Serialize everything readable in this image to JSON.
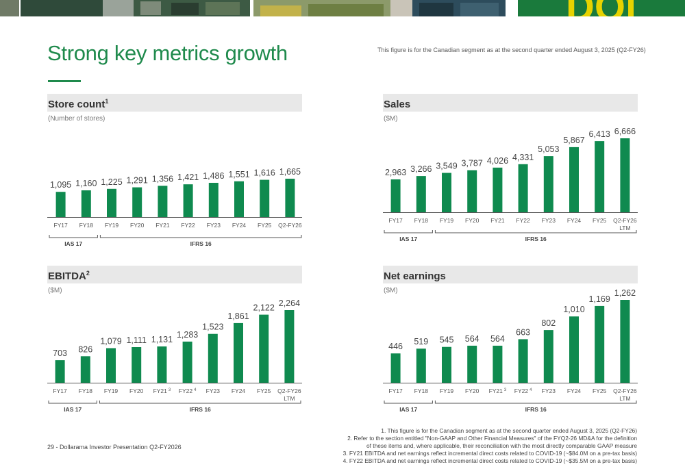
{
  "page": {
    "title": "Strong key metrics growth",
    "top_note": "This figure is for the Canadian segment as at the second quarter ended August 3, 2025 (Q2-FY26)",
    "footer": "29 - Dollarama Investor Presentation Q2-FY2026",
    "footnotes": [
      "1. This figure is for the Canadian segment as at the second quarter ended August 3, 2025 (Q2-FY26)",
      "2. Refer to the section entitled \"Non-GAAP and Other Financial Measures\" of the FYQ2-26 MD&A for the definition",
      "of these items and, where applicable, their reconciliation with the most directly comparable GAAP measure",
      "3. FY21 EBITDA and net earnings reflect incremental direct costs related to COVID-19 (~$84.0M on a pre-tax basis)",
      "4. FY22 EBITDA and net earnings reflect incremental direct costs related to COVID-19 (~$35.5M on a pre-tax basis)"
    ],
    "bar_color": "#0f8a4f",
    "accent_color": "#1f8a4c",
    "banner_logo_text": "DOl"
  },
  "chart_data": [
    {
      "type": "bar",
      "title": "Store count",
      "title_sup": "1",
      "unit": "(Number of stores)",
      "categories": [
        "FY17",
        "FY18",
        "FY19",
        "FY20",
        "FY21",
        "FY22",
        "FY23",
        "FY24",
        "FY25",
        "Q2-FY26"
      ],
      "category_sups": [
        "",
        "",
        "",
        "",
        "",
        "",
        "",
        "",
        "",
        ""
      ],
      "category_sublabels": [
        "",
        "",
        "",
        "",
        "",
        "",
        "",
        "",
        "",
        ""
      ],
      "values": [
        1095,
        1160,
        1225,
        1291,
        1356,
        1421,
        1486,
        1551,
        1616,
        1665
      ],
      "value_labels": [
        "1,095",
        "1,160",
        "1,225",
        "1,291",
        "1,356",
        "1,421",
        "1,486",
        "1,551",
        "1,616",
        "1,665"
      ],
      "groups": [
        {
          "label": "IAS 17",
          "from": 0,
          "to": 1
        },
        {
          "label": "IFRS 16",
          "from": 2,
          "to": 9
        }
      ]
    },
    {
      "type": "bar",
      "title": "Sales",
      "title_sup": "",
      "unit": "($M)",
      "categories": [
        "FY17",
        "FY18",
        "FY19",
        "FY20",
        "FY21",
        "FY22",
        "FY23",
        "FY24",
        "FY25",
        "Q2-FY26"
      ],
      "category_sups": [
        "",
        "",
        "",
        "",
        "",
        "",
        "",
        "",
        "",
        ""
      ],
      "category_sublabels": [
        "",
        "",
        "",
        "",
        "",
        "",
        "",
        "",
        "",
        "LTM"
      ],
      "values": [
        2963,
        3266,
        3549,
        3787,
        4026,
        4331,
        5053,
        5867,
        6413,
        6666
      ],
      "value_labels": [
        "2,963",
        "3,266",
        "3,549",
        "3,787",
        "4,026",
        "4,331",
        "5,053",
        "5,867",
        "6,413",
        "6,666"
      ],
      "groups": [
        {
          "label": "IAS 17",
          "from": 0,
          "to": 1
        },
        {
          "label": "IFRS 16",
          "from": 2,
          "to": 9
        }
      ]
    },
    {
      "type": "bar",
      "title": "EBITDA",
      "title_sup": "2",
      "unit": "($M)",
      "categories": [
        "FY17",
        "FY18",
        "FY19",
        "FY20",
        "FY21",
        "FY22",
        "FY23",
        "FY24",
        "FY25",
        "Q2-FY26"
      ],
      "category_sups": [
        "",
        "",
        "",
        "",
        "3",
        "4",
        "",
        "",
        "",
        ""
      ],
      "category_sublabels": [
        "",
        "",
        "",
        "",
        "",
        "",
        "",
        "",
        "",
        "LTM"
      ],
      "values": [
        703,
        826,
        1079,
        1111,
        1131,
        1283,
        1523,
        1861,
        2122,
        2264
      ],
      "value_labels": [
        "703",
        "826",
        "1,079",
        "1,111",
        "1,131",
        "1,283",
        "1,523",
        "1,861",
        "2,122",
        "2,264"
      ],
      "groups": [
        {
          "label": "IAS 17",
          "from": 0,
          "to": 1
        },
        {
          "label": "IFRS 16",
          "from": 2,
          "to": 9
        }
      ]
    },
    {
      "type": "bar",
      "title": "Net earnings",
      "title_sup": "",
      "unit": "($M)",
      "categories": [
        "FY17",
        "FY18",
        "FY19",
        "FY20",
        "FY21",
        "FY22",
        "FY23",
        "FY24",
        "FY25",
        "Q2-FY26"
      ],
      "category_sups": [
        "",
        "",
        "",
        "",
        "3",
        "4",
        "",
        "",
        "",
        ""
      ],
      "category_sublabels": [
        "",
        "",
        "",
        "",
        "",
        "",
        "",
        "",
        "",
        "LTM"
      ],
      "values": [
        446,
        519,
        545,
        564,
        564,
        663,
        802,
        1010,
        1169,
        1262
      ],
      "value_labels": [
        "446",
        "519",
        "545",
        "564",
        "564",
        "663",
        "802",
        "1,010",
        "1,169",
        "1,262"
      ],
      "groups": [
        {
          "label": "IAS 17",
          "from": 0,
          "to": 1
        },
        {
          "label": "IFRS 16",
          "from": 2,
          "to": 9
        }
      ]
    }
  ]
}
